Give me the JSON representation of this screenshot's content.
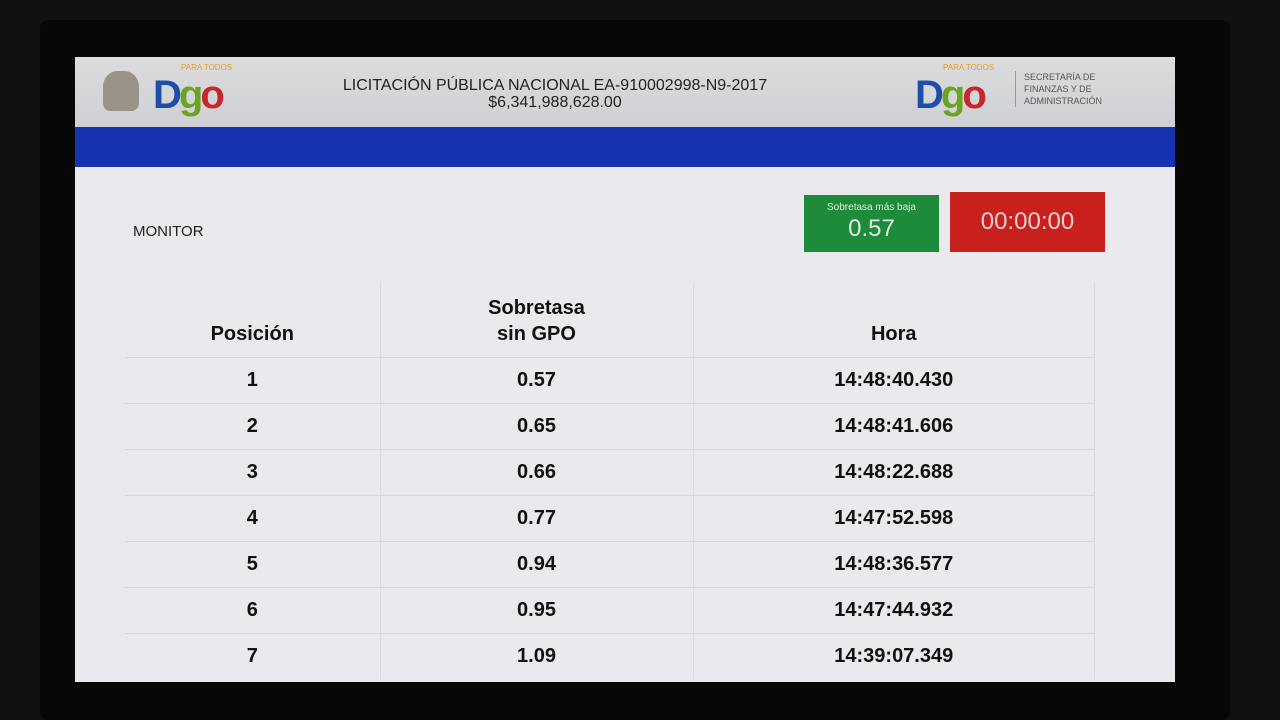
{
  "header": {
    "title": "LICITACIÓN PÚBLICA NACIONAL EA-910002998-N9-2017",
    "amount": "$6,341,988,628.00",
    "logo_text": "Dgo",
    "logo_tag": "PARA TODOS",
    "secretaria": [
      "SECRETARÍA DE",
      "FINANZAS Y DE",
      "ADMINISTRACIÓN"
    ]
  },
  "monitor_label": "MONITOR",
  "lowest": {
    "label": "Sobretasa más baja",
    "value": "0.57",
    "color": "#1d8b3a"
  },
  "timer": {
    "value": "00:00:00",
    "color": "#c8201d"
  },
  "table": {
    "headers": [
      "Posición",
      "Sobretasa sin GPO",
      "Hora"
    ],
    "rows": [
      [
        "1",
        "0.57",
        "14:48:40.430"
      ],
      [
        "2",
        "0.65",
        "14:48:41.606"
      ],
      [
        "3",
        "0.66",
        "14:48:22.688"
      ],
      [
        "4",
        "0.77",
        "14:47:52.598"
      ],
      [
        "5",
        "0.94",
        "14:48:36.577"
      ],
      [
        "6",
        "0.95",
        "14:47:44.932"
      ],
      [
        "7",
        "1.09",
        "14:39:07.349"
      ]
    ]
  }
}
